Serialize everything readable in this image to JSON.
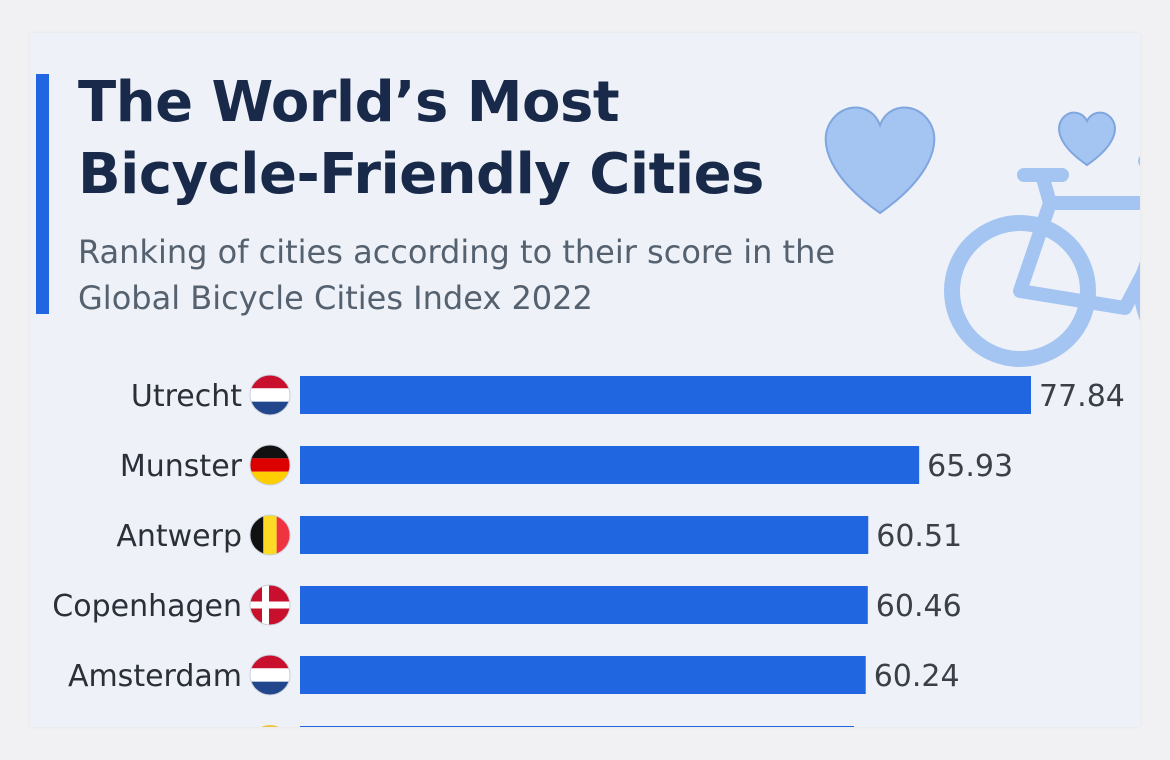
{
  "title": "The World’s Most Bicycle-Friendly Cities",
  "subtitle": "Ranking of cities according to their score in the Global Bicycle Cities Index 2022",
  "icons": [
    "heart-icon",
    "heart-icon",
    "bicycle-icon"
  ],
  "colors": {
    "bar": "#1f66e0",
    "accent": "#1f66e0",
    "decor": "#a4c4f2",
    "title": "#18294a"
  },
  "chart_data": {
    "type": "bar",
    "orientation": "horizontal",
    "title": "The World’s Most Bicycle-Friendly Cities",
    "subtitle": "Ranking of cities according to their score in the Global Bicycle Cities Index 2022",
    "categories": [
      "Utrecht",
      "Munster",
      "Antwerp",
      "Copenhagen",
      "Amsterdam"
    ],
    "values": [
      77.84,
      65.93,
      60.51,
      60.46,
      60.24
    ],
    "value_labels": [
      "77.84",
      "65.93",
      "60.51",
      "60.46",
      "60.24"
    ],
    "flags": [
      "netherlands-flag-icon",
      "germany-flag-icon",
      "belgium-flag-icon",
      "denmark-flag-icon",
      "netherlands-flag-icon"
    ],
    "partial_next_value": 59.0,
    "xlim": [
      0,
      77.84
    ],
    "grid": false,
    "legend": "none"
  }
}
